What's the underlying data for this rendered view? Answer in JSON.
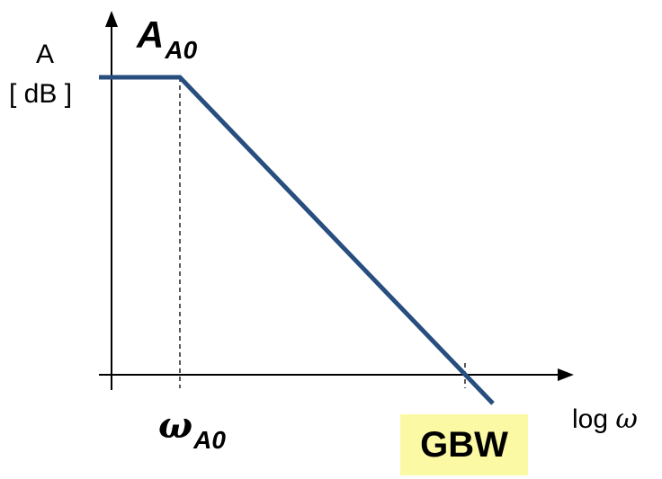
{
  "y_axis": {
    "quantity": "A",
    "unit": "[ dB ]"
  },
  "x_axis": {
    "label_prefix": "log",
    "label_symbol": "ω"
  },
  "annotations": {
    "dc_gain": {
      "symbol": "A",
      "subscript": "A0"
    },
    "pole_frequency": {
      "symbol": "ω",
      "subscript": "A0"
    },
    "gbw": {
      "text": "GBW",
      "highlight_color": "#fbf9a3"
    }
  },
  "colors": {
    "curve": "#284e7f",
    "axes": "#000000"
  }
}
